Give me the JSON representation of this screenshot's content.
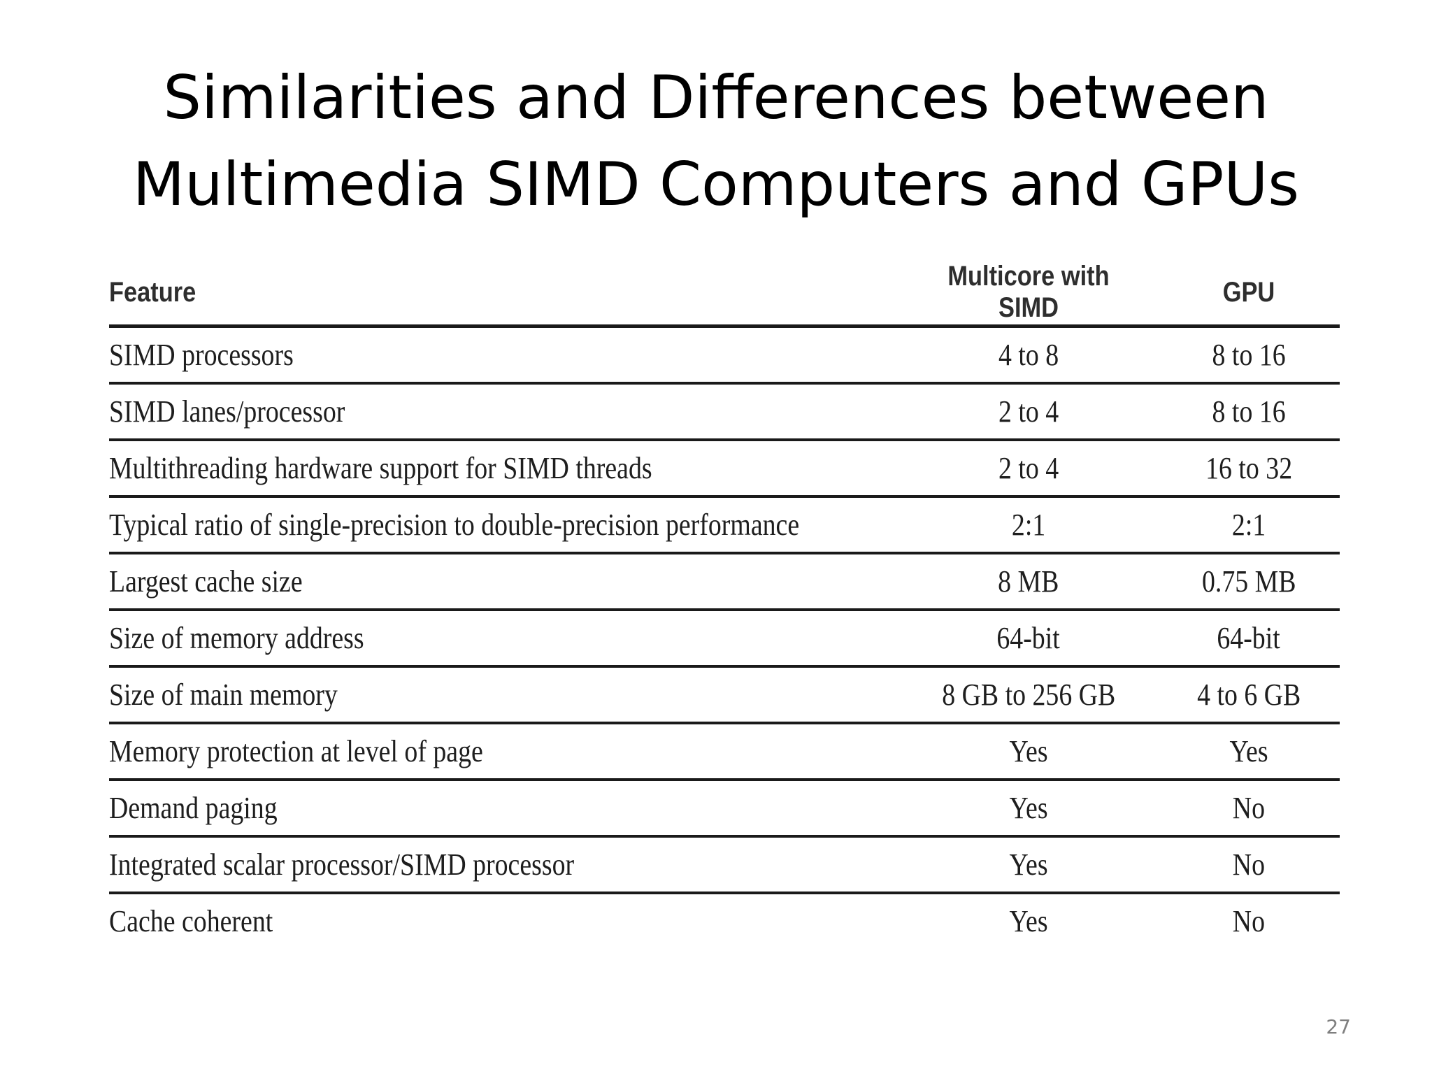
{
  "slide": {
    "title_lines": [
      "Similarities and Differences between",
      "Multimedia SIMD Computers and GPUs"
    ],
    "page_number": "27"
  },
  "table": {
    "headers": {
      "feature": "Feature",
      "multicore": "Multicore with SIMD",
      "gpu": "GPU"
    },
    "rows": [
      {
        "feature": "SIMD processors",
        "multicore": "4 to 8",
        "gpu": "8 to 16"
      },
      {
        "feature": "SIMD lanes/processor",
        "multicore": "2 to 4",
        "gpu": "8 to 16"
      },
      {
        "feature": "Multithreading hardware support for SIMD threads",
        "multicore": "2 to 4",
        "gpu": "16 to 32"
      },
      {
        "feature": "Typical ratio of single-precision to double-precision performance",
        "multicore": "2:1",
        "gpu": "2:1"
      },
      {
        "feature": "Largest cache size",
        "multicore": "8 MB",
        "gpu": "0.75 MB"
      },
      {
        "feature": "Size of memory address",
        "multicore": "64-bit",
        "gpu": "64-bit"
      },
      {
        "feature": "Size of main memory",
        "multicore": "8 GB to 256 GB",
        "gpu": "4 to 6 GB"
      },
      {
        "feature": "Memory protection at level of page",
        "multicore": "Yes",
        "gpu": "Yes"
      },
      {
        "feature": "Demand paging",
        "multicore": "Yes",
        "gpu": "No"
      },
      {
        "feature": "Integrated scalar processor/SIMD processor",
        "multicore": "Yes",
        "gpu": "No"
      },
      {
        "feature": "Cache coherent",
        "multicore": "Yes",
        "gpu": "No"
      }
    ]
  }
}
